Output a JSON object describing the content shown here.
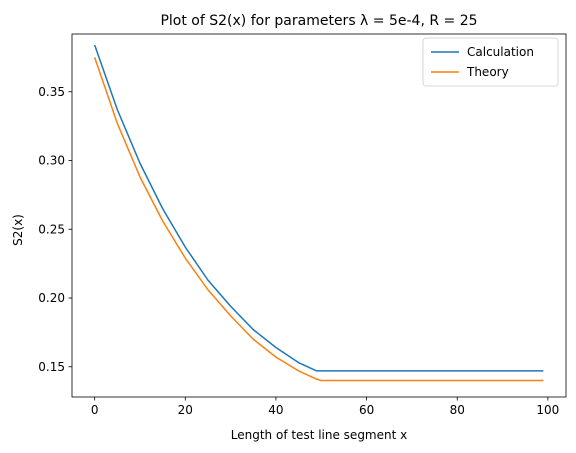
{
  "chart_data": {
    "type": "line",
    "title": "Plot of S2(x) for parameters λ = 5e-4, R = 25",
    "xlabel": "Length of test line segment x",
    "ylabel": "S2(x)",
    "xlim": [
      -5,
      104
    ],
    "ylim": [
      0.128,
      0.392
    ],
    "xticks": [
      0,
      20,
      40,
      60,
      80,
      100
    ],
    "yticks": [
      0.15,
      0.2,
      0.25,
      0.3,
      0.35
    ],
    "ytick_labels": [
      "0.15",
      "0.20",
      "0.25",
      "0.30",
      "0.35"
    ],
    "legend_position": "upper-right",
    "grid": false,
    "series": [
      {
        "name": "Calculation",
        "color": "#1f77b4",
        "x": [
          0,
          5,
          10,
          15,
          20,
          25,
          30,
          35,
          40,
          45,
          49,
          50,
          60,
          70,
          80,
          90,
          99
        ],
        "y": [
          0.384,
          0.337,
          0.298,
          0.265,
          0.237,
          0.213,
          0.194,
          0.177,
          0.164,
          0.153,
          0.147,
          0.147,
          0.147,
          0.147,
          0.147,
          0.147,
          0.147
        ]
      },
      {
        "name": "Theory",
        "color": "#ff7f0e",
        "x": [
          0,
          5,
          10,
          15,
          20,
          25,
          30,
          35,
          40,
          45,
          49,
          50,
          60,
          70,
          80,
          90,
          99
        ],
        "y": [
          0.375,
          0.327,
          0.288,
          0.256,
          0.229,
          0.206,
          0.187,
          0.17,
          0.157,
          0.147,
          0.141,
          0.14,
          0.14,
          0.14,
          0.14,
          0.14,
          0.14
        ]
      }
    ]
  }
}
